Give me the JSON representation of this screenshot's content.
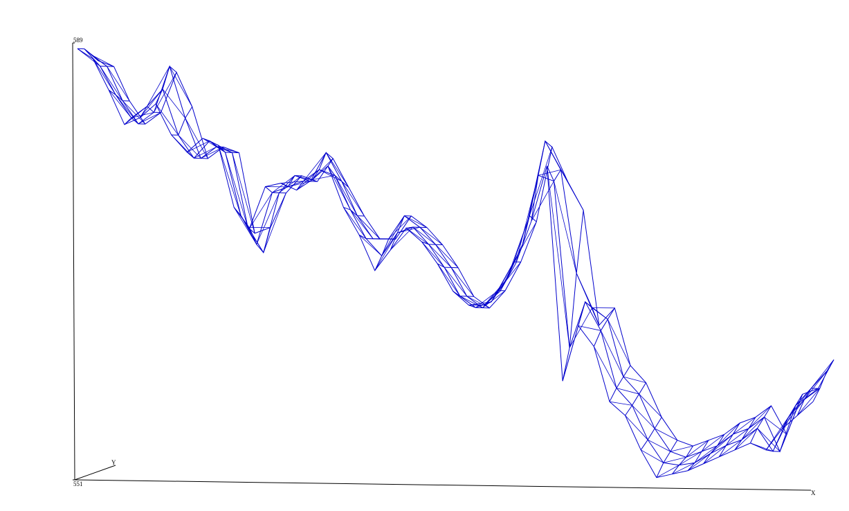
{
  "chart_data": {
    "type": "wireframe",
    "zlim": [
      551,
      589
    ],
    "zticks": [
      551,
      589
    ],
    "x_label": "X",
    "y_label": "Y",
    "color": "#0000cc",
    "surface": [
      [
        588.5,
        587.6,
        584.9,
        581.9,
        582.5,
        583.7,
        581.0,
        579.5,
        580.7,
        580.1,
        574.7,
        572.9,
        576.5,
        576.8,
        576.2,
        577.1,
        578.3,
        574.7,
        572.3,
        569.2,
        571.0,
        572.9,
        571.7,
        569.8,
        567.4,
        566.2,
        566.2,
        567.4,
        569.8,
        573.5,
        578.3,
        559.6,
        564.4,
        562.6,
        557.8,
        556.6,
        553.6,
        551.2,
        551.5,
        551.8,
        552.4,
        553.0,
        553.6,
        554.2,
        553.6,
        555.4,
        556.6,
        557.8
      ],
      [
        588.0,
        586.5,
        584.0,
        582.0,
        583.0,
        584.5,
        580.5,
        578.5,
        580.0,
        579.0,
        573.5,
        571.0,
        575.5,
        576.0,
        576.5,
        577.5,
        577.0,
        574.0,
        571.5,
        570.0,
        572.0,
        572.5,
        571.0,
        569.0,
        566.5,
        565.5,
        566.0,
        568.0,
        571.0,
        577.0,
        576.5,
        562.0,
        566.0,
        563.5,
        558.5,
        557.0,
        554.0,
        552.0,
        551.8,
        552.0,
        552.8,
        553.5,
        554.0,
        555.0,
        553.0,
        556.0,
        557.5,
        558.5
      ],
      [
        587.0,
        586.0,
        583.0,
        581.0,
        582.0,
        586.0,
        581.5,
        578.0,
        579.0,
        578.5,
        572.0,
        569.8,
        575.0,
        576.5,
        576.0,
        578.5,
        576.0,
        573.0,
        571.0,
        571.0,
        573.0,
        572.0,
        570.5,
        568.5,
        566.0,
        565.0,
        566.5,
        569.0,
        573.0,
        579.5,
        577.0,
        568.0,
        565.0,
        564.0,
        559.0,
        557.5,
        554.5,
        552.5,
        552.0,
        552.5,
        553.0,
        554.0,
        554.5,
        555.5,
        552.5,
        556.5,
        558.0,
        559.5
      ],
      [
        586.0,
        585.5,
        582.5,
        580.5,
        581.5,
        585.0,
        582.0,
        577.5,
        578.5,
        578.0,
        571.0,
        571.5,
        574.5,
        576.0,
        575.5,
        577.5,
        575.0,
        572.5,
        570.5,
        570.5,
        572.5,
        571.5,
        570.0,
        568.0,
        565.5,
        564.5,
        566.0,
        568.5,
        572.0,
        578.5,
        575.5,
        573.0,
        563.0,
        564.5,
        559.5,
        558.0,
        555.0,
        553.0,
        552.5,
        553.0,
        553.5,
        554.5,
        555.0,
        556.0,
        553.5,
        557.0,
        557.5,
        560.0
      ]
    ]
  }
}
